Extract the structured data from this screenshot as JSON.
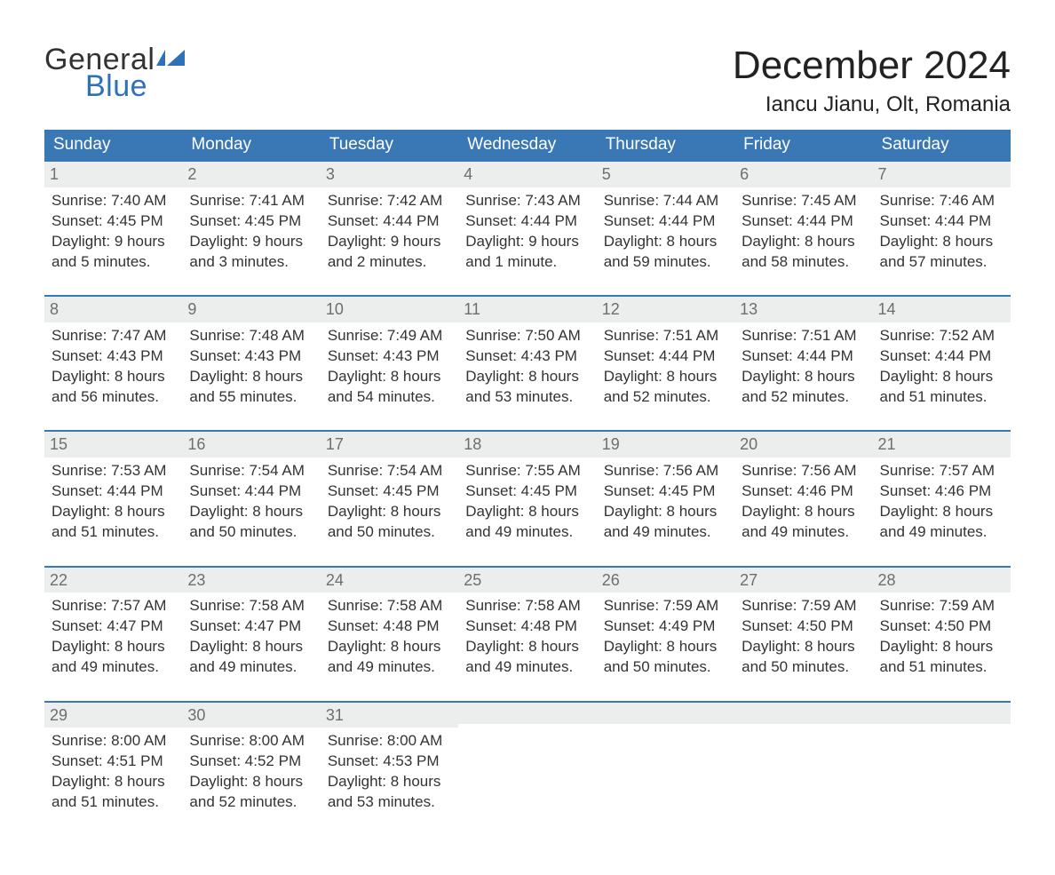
{
  "brand": {
    "line1": "General",
    "line2": "Blue",
    "text_color": "#333333",
    "accent_color": "#2d72b8"
  },
  "header": {
    "month_title": "December 2024",
    "location": "Iancu Jianu, Olt, Romania"
  },
  "styling": {
    "header_bg": "#3a78b5",
    "header_text": "#ffffff",
    "week_top_border": "#3a78b5",
    "daynum_bg": "#eceded",
    "daynum_color": "#6e6e6e",
    "body_text": "#333333",
    "page_bg": "#ffffff",
    "title_fontsize": 44,
    "location_fontsize": 24,
    "dayhead_fontsize": 19,
    "cell_fontsize": 17
  },
  "day_labels": [
    "Sunday",
    "Monday",
    "Tuesday",
    "Wednesday",
    "Thursday",
    "Friday",
    "Saturday"
  ],
  "weeks": [
    [
      {
        "n": "1",
        "sunrise": "Sunrise: 7:40 AM",
        "sunset": "Sunset: 4:45 PM",
        "dl1": "Daylight: 9 hours",
        "dl2": "and 5 minutes."
      },
      {
        "n": "2",
        "sunrise": "Sunrise: 7:41 AM",
        "sunset": "Sunset: 4:45 PM",
        "dl1": "Daylight: 9 hours",
        "dl2": "and 3 minutes."
      },
      {
        "n": "3",
        "sunrise": "Sunrise: 7:42 AM",
        "sunset": "Sunset: 4:44 PM",
        "dl1": "Daylight: 9 hours",
        "dl2": "and 2 minutes."
      },
      {
        "n": "4",
        "sunrise": "Sunrise: 7:43 AM",
        "sunset": "Sunset: 4:44 PM",
        "dl1": "Daylight: 9 hours",
        "dl2": "and 1 minute."
      },
      {
        "n": "5",
        "sunrise": "Sunrise: 7:44 AM",
        "sunset": "Sunset: 4:44 PM",
        "dl1": "Daylight: 8 hours",
        "dl2": "and 59 minutes."
      },
      {
        "n": "6",
        "sunrise": "Sunrise: 7:45 AM",
        "sunset": "Sunset: 4:44 PM",
        "dl1": "Daylight: 8 hours",
        "dl2": "and 58 minutes."
      },
      {
        "n": "7",
        "sunrise": "Sunrise: 7:46 AM",
        "sunset": "Sunset: 4:44 PM",
        "dl1": "Daylight: 8 hours",
        "dl2": "and 57 minutes."
      }
    ],
    [
      {
        "n": "8",
        "sunrise": "Sunrise: 7:47 AM",
        "sunset": "Sunset: 4:43 PM",
        "dl1": "Daylight: 8 hours",
        "dl2": "and 56 minutes."
      },
      {
        "n": "9",
        "sunrise": "Sunrise: 7:48 AM",
        "sunset": "Sunset: 4:43 PM",
        "dl1": "Daylight: 8 hours",
        "dl2": "and 55 minutes."
      },
      {
        "n": "10",
        "sunrise": "Sunrise: 7:49 AM",
        "sunset": "Sunset: 4:43 PM",
        "dl1": "Daylight: 8 hours",
        "dl2": "and 54 minutes."
      },
      {
        "n": "11",
        "sunrise": "Sunrise: 7:50 AM",
        "sunset": "Sunset: 4:43 PM",
        "dl1": "Daylight: 8 hours",
        "dl2": "and 53 minutes."
      },
      {
        "n": "12",
        "sunrise": "Sunrise: 7:51 AM",
        "sunset": "Sunset: 4:44 PM",
        "dl1": "Daylight: 8 hours",
        "dl2": "and 52 minutes."
      },
      {
        "n": "13",
        "sunrise": "Sunrise: 7:51 AM",
        "sunset": "Sunset: 4:44 PM",
        "dl1": "Daylight: 8 hours",
        "dl2": "and 52 minutes."
      },
      {
        "n": "14",
        "sunrise": "Sunrise: 7:52 AM",
        "sunset": "Sunset: 4:44 PM",
        "dl1": "Daylight: 8 hours",
        "dl2": "and 51 minutes."
      }
    ],
    [
      {
        "n": "15",
        "sunrise": "Sunrise: 7:53 AM",
        "sunset": "Sunset: 4:44 PM",
        "dl1": "Daylight: 8 hours",
        "dl2": "and 51 minutes."
      },
      {
        "n": "16",
        "sunrise": "Sunrise: 7:54 AM",
        "sunset": "Sunset: 4:44 PM",
        "dl1": "Daylight: 8 hours",
        "dl2": "and 50 minutes."
      },
      {
        "n": "17",
        "sunrise": "Sunrise: 7:54 AM",
        "sunset": "Sunset: 4:45 PM",
        "dl1": "Daylight: 8 hours",
        "dl2": "and 50 minutes."
      },
      {
        "n": "18",
        "sunrise": "Sunrise: 7:55 AM",
        "sunset": "Sunset: 4:45 PM",
        "dl1": "Daylight: 8 hours",
        "dl2": "and 49 minutes."
      },
      {
        "n": "19",
        "sunrise": "Sunrise: 7:56 AM",
        "sunset": "Sunset: 4:45 PM",
        "dl1": "Daylight: 8 hours",
        "dl2": "and 49 minutes."
      },
      {
        "n": "20",
        "sunrise": "Sunrise: 7:56 AM",
        "sunset": "Sunset: 4:46 PM",
        "dl1": "Daylight: 8 hours",
        "dl2": "and 49 minutes."
      },
      {
        "n": "21",
        "sunrise": "Sunrise: 7:57 AM",
        "sunset": "Sunset: 4:46 PM",
        "dl1": "Daylight: 8 hours",
        "dl2": "and 49 minutes."
      }
    ],
    [
      {
        "n": "22",
        "sunrise": "Sunrise: 7:57 AM",
        "sunset": "Sunset: 4:47 PM",
        "dl1": "Daylight: 8 hours",
        "dl2": "and 49 minutes."
      },
      {
        "n": "23",
        "sunrise": "Sunrise: 7:58 AM",
        "sunset": "Sunset: 4:47 PM",
        "dl1": "Daylight: 8 hours",
        "dl2": "and 49 minutes."
      },
      {
        "n": "24",
        "sunrise": "Sunrise: 7:58 AM",
        "sunset": "Sunset: 4:48 PM",
        "dl1": "Daylight: 8 hours",
        "dl2": "and 49 minutes."
      },
      {
        "n": "25",
        "sunrise": "Sunrise: 7:58 AM",
        "sunset": "Sunset: 4:48 PM",
        "dl1": "Daylight: 8 hours",
        "dl2": "and 49 minutes."
      },
      {
        "n": "26",
        "sunrise": "Sunrise: 7:59 AM",
        "sunset": "Sunset: 4:49 PM",
        "dl1": "Daylight: 8 hours",
        "dl2": "and 50 minutes."
      },
      {
        "n": "27",
        "sunrise": "Sunrise: 7:59 AM",
        "sunset": "Sunset: 4:50 PM",
        "dl1": "Daylight: 8 hours",
        "dl2": "and 50 minutes."
      },
      {
        "n": "28",
        "sunrise": "Sunrise: 7:59 AM",
        "sunset": "Sunset: 4:50 PM",
        "dl1": "Daylight: 8 hours",
        "dl2": "and 51 minutes."
      }
    ],
    [
      {
        "n": "29",
        "sunrise": "Sunrise: 8:00 AM",
        "sunset": "Sunset: 4:51 PM",
        "dl1": "Daylight: 8 hours",
        "dl2": "and 51 minutes."
      },
      {
        "n": "30",
        "sunrise": "Sunrise: 8:00 AM",
        "sunset": "Sunset: 4:52 PM",
        "dl1": "Daylight: 8 hours",
        "dl2": "and 52 minutes."
      },
      {
        "n": "31",
        "sunrise": "Sunrise: 8:00 AM",
        "sunset": "Sunset: 4:53 PM",
        "dl1": "Daylight: 8 hours",
        "dl2": "and 53 minutes."
      },
      {
        "empty": true
      },
      {
        "empty": true
      },
      {
        "empty": true
      },
      {
        "empty": true
      }
    ]
  ]
}
